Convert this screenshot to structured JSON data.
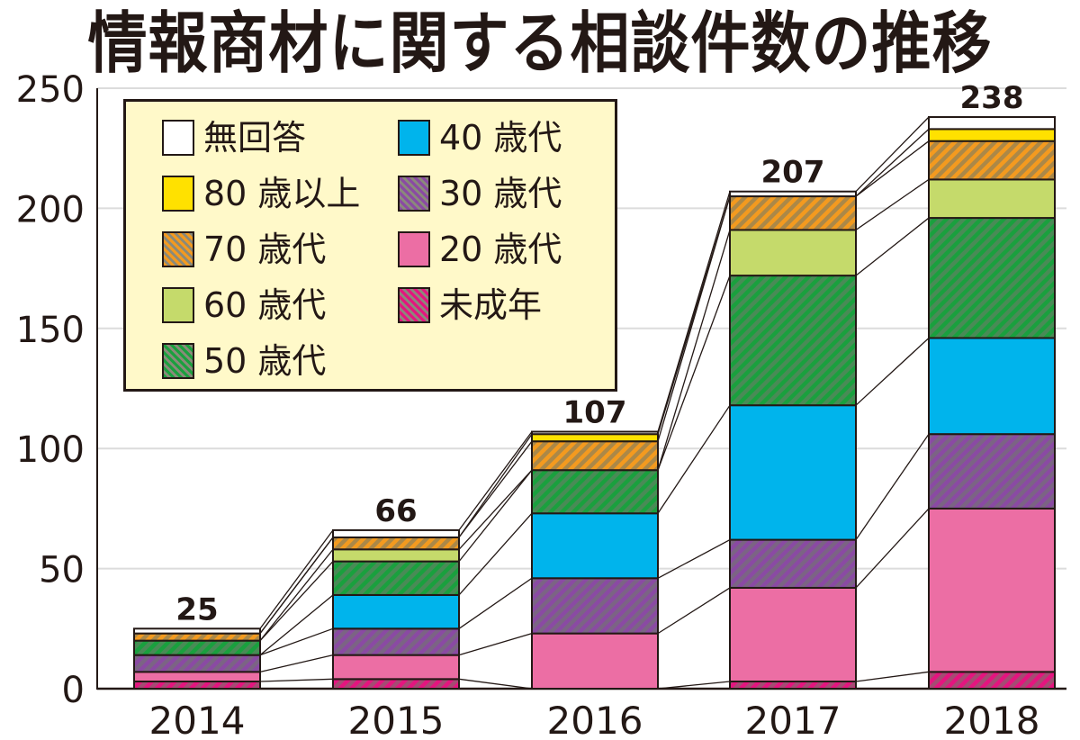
{
  "title": "情報商材に関する相談件数の推移",
  "legend": {
    "items": [
      {
        "key": "no_answer",
        "label": "無回答",
        "color": "#ffffff",
        "hatch": false
      },
      {
        "key": "80plus",
        "label": "80 歳以上",
        "color": "#ffe100",
        "hatch": false
      },
      {
        "key": "70s",
        "label": "70 歳代",
        "color": "#f39a1f",
        "hatch": true
      },
      {
        "key": "60s",
        "label": "60 歳代",
        "color": "#c5da6b",
        "hatch": false
      },
      {
        "key": "50s",
        "label": "50 歳代",
        "color": "#1aa03e",
        "hatch": true
      },
      {
        "key": "40s",
        "label": "40 歳代",
        "color": "#00b4ec",
        "hatch": false
      },
      {
        "key": "30s",
        "label": "30 歳代",
        "color": "#8a4aa3",
        "hatch": true
      },
      {
        "key": "20s",
        "label": "20 歳代",
        "color": "#ec6ea4",
        "hatch": false
      },
      {
        "key": "minor",
        "label": "未成年",
        "color": "#e4157f",
        "hatch": true
      }
    ]
  },
  "chart_data": {
    "type": "bar",
    "stacked": true,
    "title": "情報商材に関する相談件数の推移",
    "xlabel": "",
    "ylabel": "",
    "ylim": [
      0,
      250
    ],
    "yticks": [
      0,
      50,
      100,
      150,
      200,
      250
    ],
    "grid": true,
    "legend_position": "upper-left inside plot",
    "categories": [
      "2014",
      "2015",
      "2016",
      "2017",
      "2018"
    ],
    "totals": [
      25,
      66,
      107,
      207,
      238
    ],
    "series": [
      {
        "name": "未成年",
        "values": [
          3,
          4,
          0,
          3,
          7
        ]
      },
      {
        "name": "20 歳代",
        "values": [
          4,
          10,
          23,
          39,
          68
        ]
      },
      {
        "name": "30 歳代",
        "values": [
          7,
          11,
          23,
          20,
          31
        ]
      },
      {
        "name": "40 歳代",
        "values": [
          0,
          14,
          27,
          56,
          40
        ]
      },
      {
        "name": "50 歳代",
        "values": [
          6,
          14,
          18,
          54,
          50
        ]
      },
      {
        "name": "60 歳代",
        "values": [
          0,
          5,
          0,
          19,
          16
        ]
      },
      {
        "name": "70 歳代",
        "values": [
          3,
          5,
          12,
          14,
          16
        ]
      },
      {
        "name": "80 歳以上",
        "values": [
          0,
          0,
          3,
          0,
          5
        ]
      },
      {
        "name": "無回答",
        "values": [
          2,
          3,
          1,
          2,
          5
        ]
      }
    ],
    "annotations": [
      "25",
      "66",
      "107",
      "207",
      "238"
    ]
  }
}
